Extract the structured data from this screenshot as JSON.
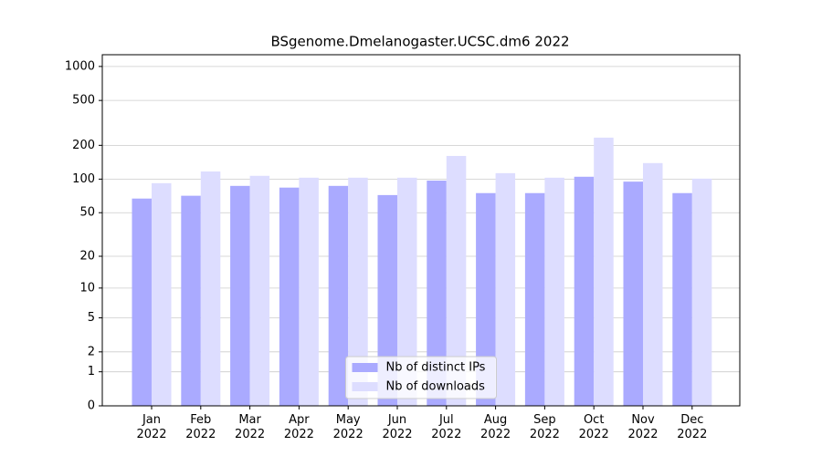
{
  "chart_data": {
    "type": "bar",
    "title": "BSgenome.Dmelanogaster.UCSC.dm6 2022",
    "categories": [
      "Jan\n2022",
      "Feb\n2022",
      "Mar\n2022",
      "Apr\n2022",
      "May\n2022",
      "Jun\n2022",
      "Jul\n2022",
      "Aug\n2022",
      "Sep\n2022",
      "Oct\n2022",
      "Nov\n2022",
      "Dec\n2022"
    ],
    "series": [
      {
        "name": "Nb of distinct IPs",
        "color": "#aaaaff",
        "values": [
          67,
          71,
          87,
          84,
          87,
          72,
          97,
          75,
          75,
          105,
          95,
          75
        ]
      },
      {
        "name": "Nb of downloads",
        "color": "#ddddff",
        "values": [
          92,
          117,
          107,
          103,
          103,
          103,
          161,
          113,
          103,
          234,
          139,
          101
        ]
      }
    ],
    "yscale": "symlog",
    "ylim": [
      0,
      1270
    ],
    "yticks": [
      0,
      1,
      2,
      5,
      10,
      20,
      50,
      100,
      200,
      500,
      1000
    ],
    "grid": true,
    "legend": "lower center"
  }
}
